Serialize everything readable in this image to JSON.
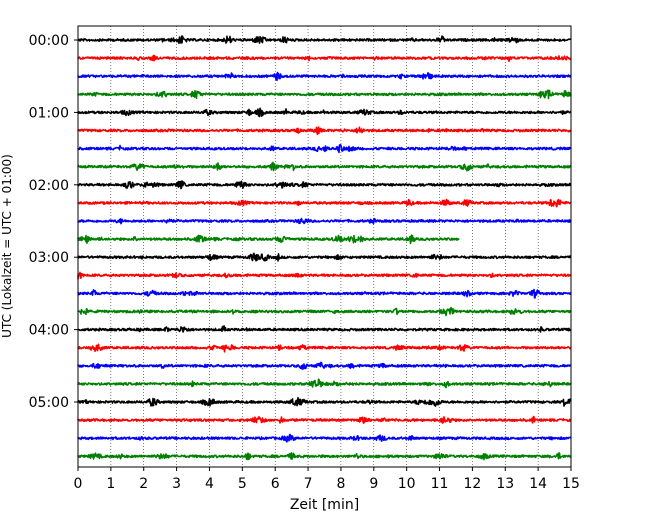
{
  "chart_data": {
    "type": "line",
    "xlabel": "Zeit  [min]",
    "ylabel": "UTC (Lokalzeit = UTC + 01:00)",
    "x_ticks": [
      "0",
      "1",
      "2",
      "3",
      "4",
      "5",
      "6",
      "7",
      "8",
      "9",
      "10",
      "11",
      "12",
      "13",
      "14",
      "15"
    ],
    "xlim": [
      0,
      15
    ],
    "y_ticks": [
      "00:00",
      "01:00",
      "02:00",
      "03:00",
      "04:00",
      "05:00"
    ],
    "grid": "vertical-dotted",
    "colors": [
      "#000000",
      "#ff0000",
      "#0000ff",
      "#008000"
    ],
    "series": [
      {
        "start": "00:00",
        "color": "#000000",
        "end_min": 15
      },
      {
        "start": "00:15",
        "color": "#ff0000",
        "end_min": 15
      },
      {
        "start": "00:30",
        "color": "#0000ff",
        "end_min": 15
      },
      {
        "start": "00:45",
        "color": "#008000",
        "end_min": 15
      },
      {
        "start": "01:00",
        "color": "#000000",
        "end_min": 15
      },
      {
        "start": "01:15",
        "color": "#ff0000",
        "end_min": 15
      },
      {
        "start": "01:30",
        "color": "#0000ff",
        "end_min": 15
      },
      {
        "start": "01:45",
        "color": "#008000",
        "end_min": 15
      },
      {
        "start": "02:00",
        "color": "#000000",
        "end_min": 15
      },
      {
        "start": "02:15",
        "color": "#ff0000",
        "end_min": 15
      },
      {
        "start": "02:30",
        "color": "#0000ff",
        "end_min": 15
      },
      {
        "start": "02:45",
        "color": "#008000",
        "end_min": 11.6
      },
      {
        "start": "03:00",
        "color": "#000000",
        "end_min": 15
      },
      {
        "start": "03:15",
        "color": "#ff0000",
        "end_min": 15
      },
      {
        "start": "03:30",
        "color": "#0000ff",
        "end_min": 15
      },
      {
        "start": "03:45",
        "color": "#008000",
        "end_min": 15
      },
      {
        "start": "04:00",
        "color": "#000000",
        "end_min": 15
      },
      {
        "start": "04:15",
        "color": "#ff0000",
        "end_min": 15
      },
      {
        "start": "04:30",
        "color": "#0000ff",
        "end_min": 15
      },
      {
        "start": "04:45",
        "color": "#008000",
        "end_min": 15
      },
      {
        "start": "05:00",
        "color": "#000000",
        "end_min": 15
      },
      {
        "start": "05:15",
        "color": "#ff0000",
        "end_min": 15
      },
      {
        "start": "05:30",
        "color": "#0000ff",
        "end_min": 15
      },
      {
        "start": "05:45",
        "color": "#008000",
        "end_min": 15
      }
    ]
  }
}
